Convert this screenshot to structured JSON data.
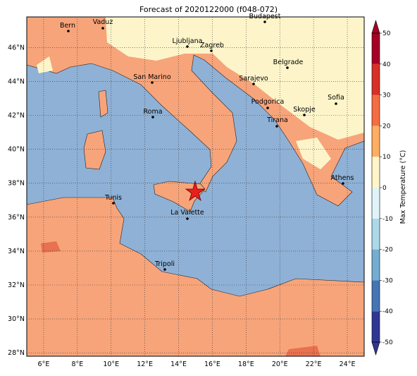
{
  "title": "Forecast of 2020122000 (f048-072)",
  "map": {
    "lon_lim": [
      5,
      25
    ],
    "lat_lim": [
      27.8,
      47.8
    ],
    "lon_ticks": [
      {
        "value": 6,
        "label": "6°E"
      },
      {
        "value": 8,
        "label": "8°E"
      },
      {
        "value": 10,
        "label": "10°E"
      },
      {
        "value": 12,
        "label": "12°E"
      },
      {
        "value": 14,
        "label": "14°E"
      },
      {
        "value": 16,
        "label": "16°E"
      },
      {
        "value": 18,
        "label": "18°E"
      },
      {
        "value": 20,
        "label": "20°E"
      },
      {
        "value": 22,
        "label": "22°E"
      },
      {
        "value": 24,
        "label": "24°E"
      }
    ],
    "lat_ticks": [
      {
        "value": 28,
        "label": "28°N"
      },
      {
        "value": 30,
        "label": "30°N"
      },
      {
        "value": 32,
        "label": "32°N"
      },
      {
        "value": 34,
        "label": "34°N"
      },
      {
        "value": 36,
        "label": "36°N"
      },
      {
        "value": 38,
        "label": "38°N"
      },
      {
        "value": 40,
        "label": "40°N"
      },
      {
        "value": 42,
        "label": "42°N"
      },
      {
        "value": 44,
        "label": "44°N"
      },
      {
        "value": 46,
        "label": "46°N"
      }
    ],
    "grid": true,
    "cities": [
      "Bern",
      "Vaduz",
      "Budapest",
      "Ljubljana",
      "Zagreb",
      "Belgrade",
      "San Marino",
      "Sarajevo",
      "Sofia",
      "Podgorica",
      "Skopje",
      "Roma",
      "Tirana",
      "Athens",
      "Tunis",
      "La Valette",
      "Tripoli"
    ]
  },
  "colorbar": {
    "label": "Max Temperature (°C)",
    "ticks": [
      -50,
      -40,
      -30,
      -20,
      -10,
      0,
      10,
      20,
      30,
      40,
      50
    ],
    "colors": [
      "#313695",
      "#4575b4",
      "#74add1",
      "#abd9e9",
      "#e0f3f8",
      "#fef6c8",
      "#fdae61",
      "#f46d43",
      "#d73027",
      "#a50026"
    ]
  }
}
